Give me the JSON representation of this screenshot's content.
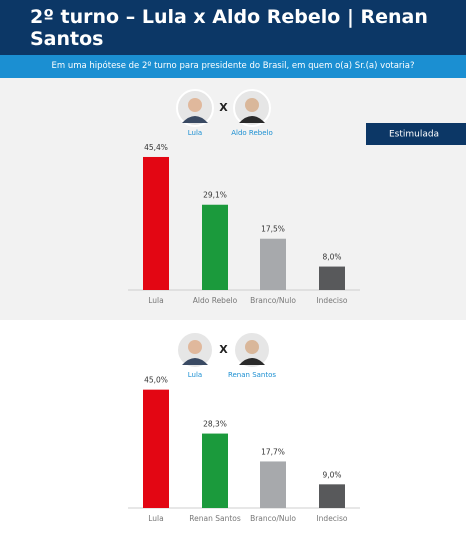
{
  "title": "2º turno – Lula x Aldo Rebelo | Renan Santos",
  "subtitle": "Em uma hipótese de 2º turno para presidente do Brasil, em quem o(a) Sr.(a) votaria?",
  "badge": "Estimulada",
  "chart_data": [
    {
      "type": "bar",
      "candidates": [
        "Lula",
        "Aldo Rebelo"
      ],
      "versus": "X",
      "categories": [
        "Lula",
        "Aldo Rebelo",
        "Branco/Nulo",
        "Indeciso"
      ],
      "values": [
        45.4,
        29.1,
        17.5,
        8.0
      ],
      "value_labels": [
        "45,4%",
        "29,1%",
        "17,5%",
        "8,0%"
      ],
      "colors": [
        "#e30613",
        "#1b9a3c",
        "#a7a9ac",
        "#58595b"
      ]
    },
    {
      "type": "bar",
      "candidates": [
        "Lula",
        "Renan Santos"
      ],
      "versus": "X",
      "categories": [
        "Lula",
        "Renan Santos",
        "Branco/Nulo",
        "Indeciso"
      ],
      "values": [
        45.0,
        28.3,
        17.7,
        9.0
      ],
      "value_labels": [
        "45,0%",
        "28,3%",
        "17,7%",
        "9,0%"
      ],
      "colors": [
        "#e30613",
        "#1b9a3c",
        "#a7a9ac",
        "#58595b"
      ]
    }
  ]
}
